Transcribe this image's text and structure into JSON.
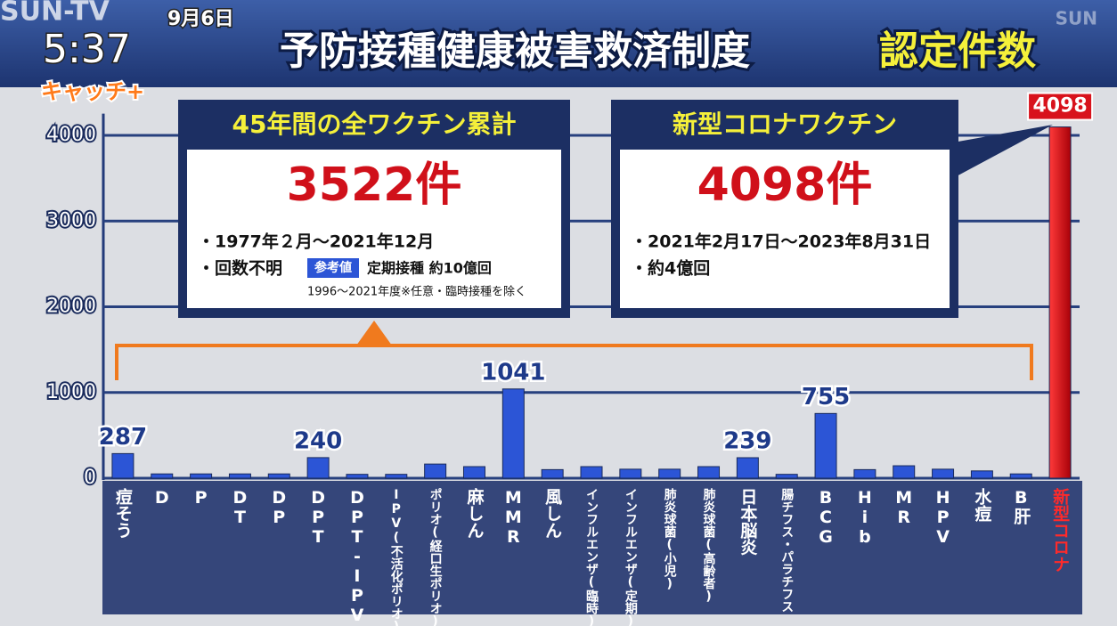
{
  "overlay": {
    "channel": "SUN-TV",
    "date": "9月6日",
    "time": "5:37",
    "program": "キャッチ+",
    "watermark": "SUN"
  },
  "chart_data": {
    "type": "bar",
    "title": "予防接種健康被害救済制度",
    "title_highlight": "認定件数",
    "categories": [
      "痘そう",
      "D",
      "P",
      "DT",
      "DP",
      "DPT",
      "DPT-IPV",
      "IPV(不活化ポリオ)",
      "ポリオ(経口生ポリオ)",
      "麻しん",
      "MMR",
      "風しん",
      "インフルエンザ(臨時)",
      "インフルエンザ(定期)",
      "肺炎球菌(小児)",
      "肺炎球菌(高齢者)",
      "日本脳炎",
      "腸チフス・パラチフス",
      "BCG",
      "Hib",
      "MR",
      "HPV",
      "水痘",
      "B肝",
      "新型コロナ"
    ],
    "values": [
      287,
      50,
      50,
      50,
      50,
      240,
      45,
      45,
      165,
      135,
      1041,
      100,
      135,
      105,
      105,
      135,
      239,
      45,
      755,
      100,
      145,
      105,
      85,
      50,
      4098
    ],
    "value_labels": [
      "287",
      null,
      null,
      null,
      null,
      "240",
      null,
      null,
      null,
      null,
      "1041",
      null,
      null,
      null,
      null,
      null,
      "239",
      null,
      "755",
      null,
      null,
      null,
      null,
      null,
      "4098"
    ],
    "colors": [
      "#2c55d6",
      "#2c55d6",
      "#2c55d6",
      "#2c55d6",
      "#2c55d6",
      "#2c55d6",
      "#2c55d6",
      "#2c55d6",
      "#2c55d6",
      "#2c55d6",
      "#2c55d6",
      "#2c55d6",
      "#2c55d6",
      "#2c55d6",
      "#2c55d6",
      "#2c55d6",
      "#2c55d6",
      "#2c55d6",
      "#2c55d6",
      "#2c55d6",
      "#2c55d6",
      "#2c55d6",
      "#2c55d6",
      "#2c55d6",
      "#d8121c"
    ],
    "ylim": [
      0,
      4150
    ],
    "yticks": [
      0,
      1000,
      2000,
      3000,
      4000
    ],
    "grid": true,
    "annotations": [
      {
        "title": "45年間の全ワクチン累計",
        "count": "3522件",
        "lines": [
          "・1977年２月～2021年12月",
          "・回数不明"
        ],
        "tag": "参考値",
        "tag_text": "定期接種 約10億回",
        "note": "1996～2021年度※任意・臨時接種を除く"
      },
      {
        "title": "新型コロナワクチン",
        "count": "4098件",
        "lines": [
          "・2021年2月17日～2023年8月31日",
          "・約4億回"
        ]
      }
    ]
  }
}
